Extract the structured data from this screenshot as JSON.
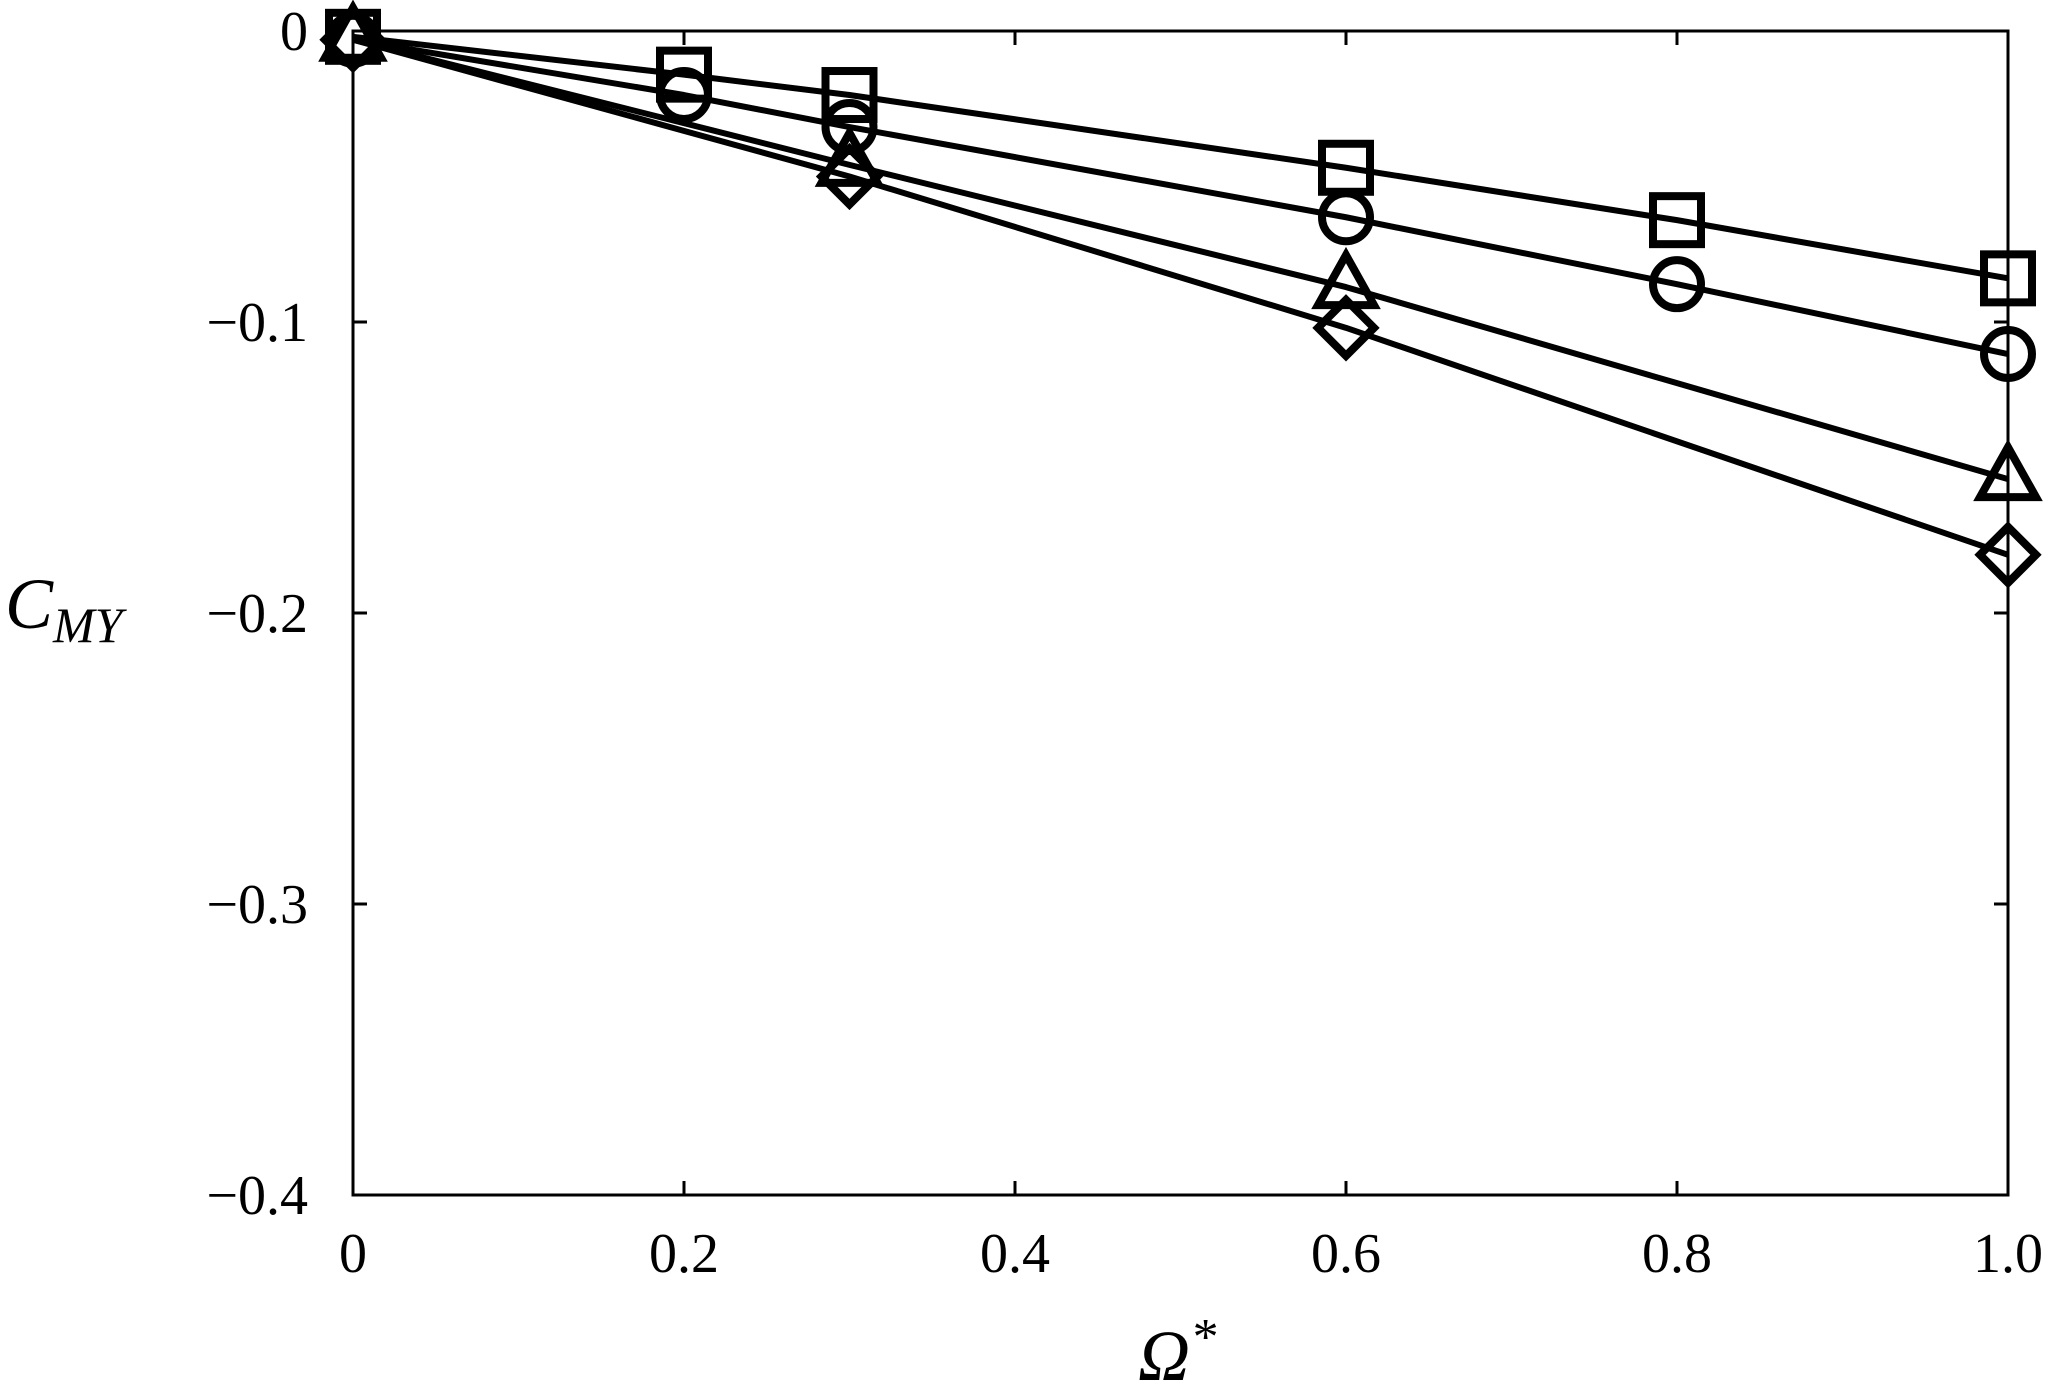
{
  "chart_data": {
    "type": "line",
    "title": "",
    "xlabel": {
      "base": "Ω",
      "sup": "*"
    },
    "ylabel": {
      "base": "C",
      "sub": "MY"
    },
    "xlim": [
      0,
      1.0
    ],
    "ylim": [
      -0.4,
      0
    ],
    "x_ticks": [
      {
        "value": 0,
        "label": "0"
      },
      {
        "value": 0.2,
        "label": "0.2"
      },
      {
        "value": 0.4,
        "label": "0.4"
      },
      {
        "value": 0.6,
        "label": "0.6"
      },
      {
        "value": 0.8,
        "label": "0.8"
      },
      {
        "value": 1.0,
        "label": "1.0"
      }
    ],
    "y_ticks": [
      {
        "value": 0,
        "label": "0"
      },
      {
        "value": -0.1,
        "label": "−0.1"
      },
      {
        "value": -0.2,
        "label": "−0.2"
      },
      {
        "value": -0.3,
        "label": "−0.3"
      },
      {
        "value": -0.4,
        "label": "−0.4"
      }
    ],
    "grid": false,
    "legend": "none",
    "line_color": "#000000",
    "series": [
      {
        "marker": "square",
        "x": [
          0,
          0.2,
          0.3,
          0.6,
          0.8,
          1.0
        ],
        "y": [
          -0.002,
          -0.015,
          -0.022,
          -0.047,
          -0.065,
          -0.085
        ]
      },
      {
        "marker": "circle",
        "x": [
          0,
          0.2,
          0.3,
          0.6,
          0.8,
          1.0
        ],
        "y": [
          -0.003,
          -0.022,
          -0.033,
          -0.064,
          -0.087,
          -0.111
        ]
      },
      {
        "marker": "triangle",
        "x": [
          0,
          0.3,
          0.6,
          1.0
        ],
        "y": [
          -0.003,
          -0.046,
          -0.088,
          -0.154
        ]
      },
      {
        "marker": "diamond",
        "x": [
          0,
          0.3,
          0.6,
          1.0
        ],
        "y": [
          -0.003,
          -0.05,
          -0.102,
          -0.18
        ]
      }
    ]
  }
}
